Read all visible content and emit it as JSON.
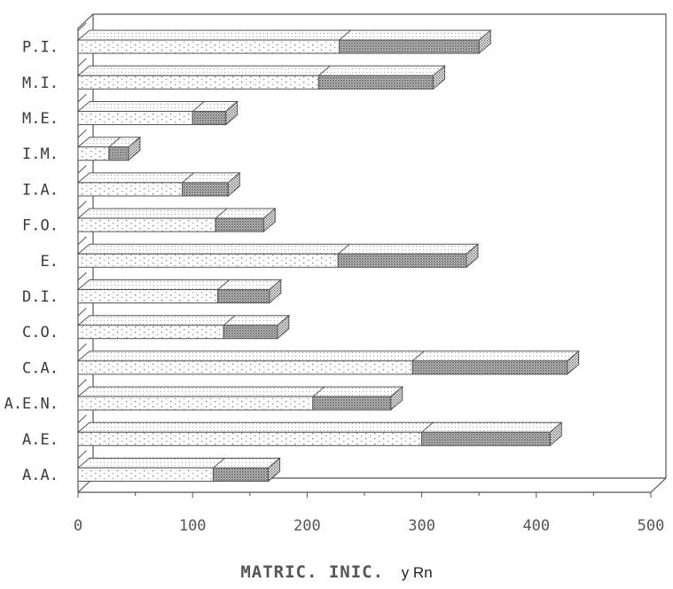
{
  "chart_data": {
    "type": "bar",
    "orientation": "horizontal",
    "style": "3d-stacked",
    "categories": [
      "A.A.",
      "A.E.",
      "A.E.N.",
      "C.A.",
      "C.O.",
      "D.I.",
      "E.",
      "F.O.",
      "I.A.",
      "I.M.",
      "M.E.",
      "M.I.",
      "P.I."
    ],
    "series": [
      {
        "values": [
          118,
          300,
          205,
          292,
          127,
          122,
          227,
          120,
          91,
          27,
          100,
          210,
          228
        ]
      },
      {
        "values": [
          48,
          112,
          68,
          135,
          47,
          45,
          112,
          42,
          40,
          17,
          29,
          100,
          122
        ]
      }
    ],
    "xticks": [
      "0",
      "100",
      "200",
      "300",
      "400",
      "500"
    ],
    "xlim": [
      0,
      500
    ],
    "xlabel": "MATRIC. INIC.",
    "xlabel_suffix": "y Rn",
    "grid": false,
    "colors": {
      "ink": "#555555",
      "dot": "#777777",
      "dense": "#6e6e6e",
      "back": "#ffffff"
    }
  }
}
